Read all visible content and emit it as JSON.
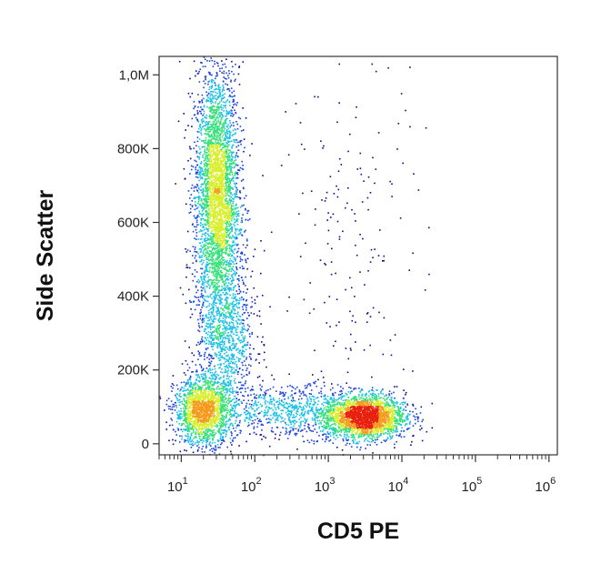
{
  "chart_data": {
    "type": "scatter",
    "subtype": "flow-cytometry-density-dot-plot",
    "title": "",
    "xlabel": "CD5 PE",
    "ylabel": "Side Scatter",
    "x_scale": "log",
    "xlim": [
      5,
      1300000
    ],
    "ylim": [
      -30000,
      1050000
    ],
    "grid": false,
    "x_ticks": [
      {
        "value": 10,
        "base": "10",
        "exp": "1"
      },
      {
        "value": 100,
        "base": "10",
        "exp": "2"
      },
      {
        "value": 1000,
        "base": "10",
        "exp": "3"
      },
      {
        "value": 10000,
        "base": "10",
        "exp": "4"
      },
      {
        "value": 100000,
        "base": "10",
        "exp": "5"
      },
      {
        "value": 1000000,
        "base": "10",
        "exp": "6"
      }
    ],
    "y_ticks": [
      {
        "value": 0,
        "label": "0"
      },
      {
        "value": 200000,
        "label": "200K"
      },
      {
        "value": 400000,
        "label": "400K"
      },
      {
        "value": 600000,
        "label": "600K"
      },
      {
        "value": 800000,
        "label": "800K"
      },
      {
        "value": 1000000,
        "label": "1,0M"
      }
    ],
    "density_palette": [
      "#0b0b8c",
      "#1a40e0",
      "#17c0e6",
      "#35e07a",
      "#d8ee2a",
      "#f59a1a",
      "#e8200e"
    ],
    "populations": [
      {
        "x_median": 30,
        "y_center": 680000,
        "y_spread": 170000,
        "x_spread_decades": 0.15,
        "events": 3500
      },
      {
        "x_median": 20,
        "y_center": 90000,
        "y_spread": 45000,
        "x_spread_decades": 0.2,
        "events": 1700
      },
      {
        "x_median": 3000,
        "y_center": 75000,
        "y_spread": 30000,
        "x_spread_decades": 0.28,
        "events": 2400
      },
      {
        "x_median": 40,
        "y_center": 300000,
        "y_spread": 120000,
        "x_spread_decades": 0.2,
        "events": 1100
      },
      {
        "x_median": 300,
        "y_center": 90000,
        "y_spread": 35000,
        "x_spread_decades": 0.45,
        "events": 700
      },
      {
        "x_median": 2000,
        "y_center": 500000,
        "y_spread": 300000,
        "x_spread_decades": 0.5,
        "events": 200
      }
    ]
  }
}
